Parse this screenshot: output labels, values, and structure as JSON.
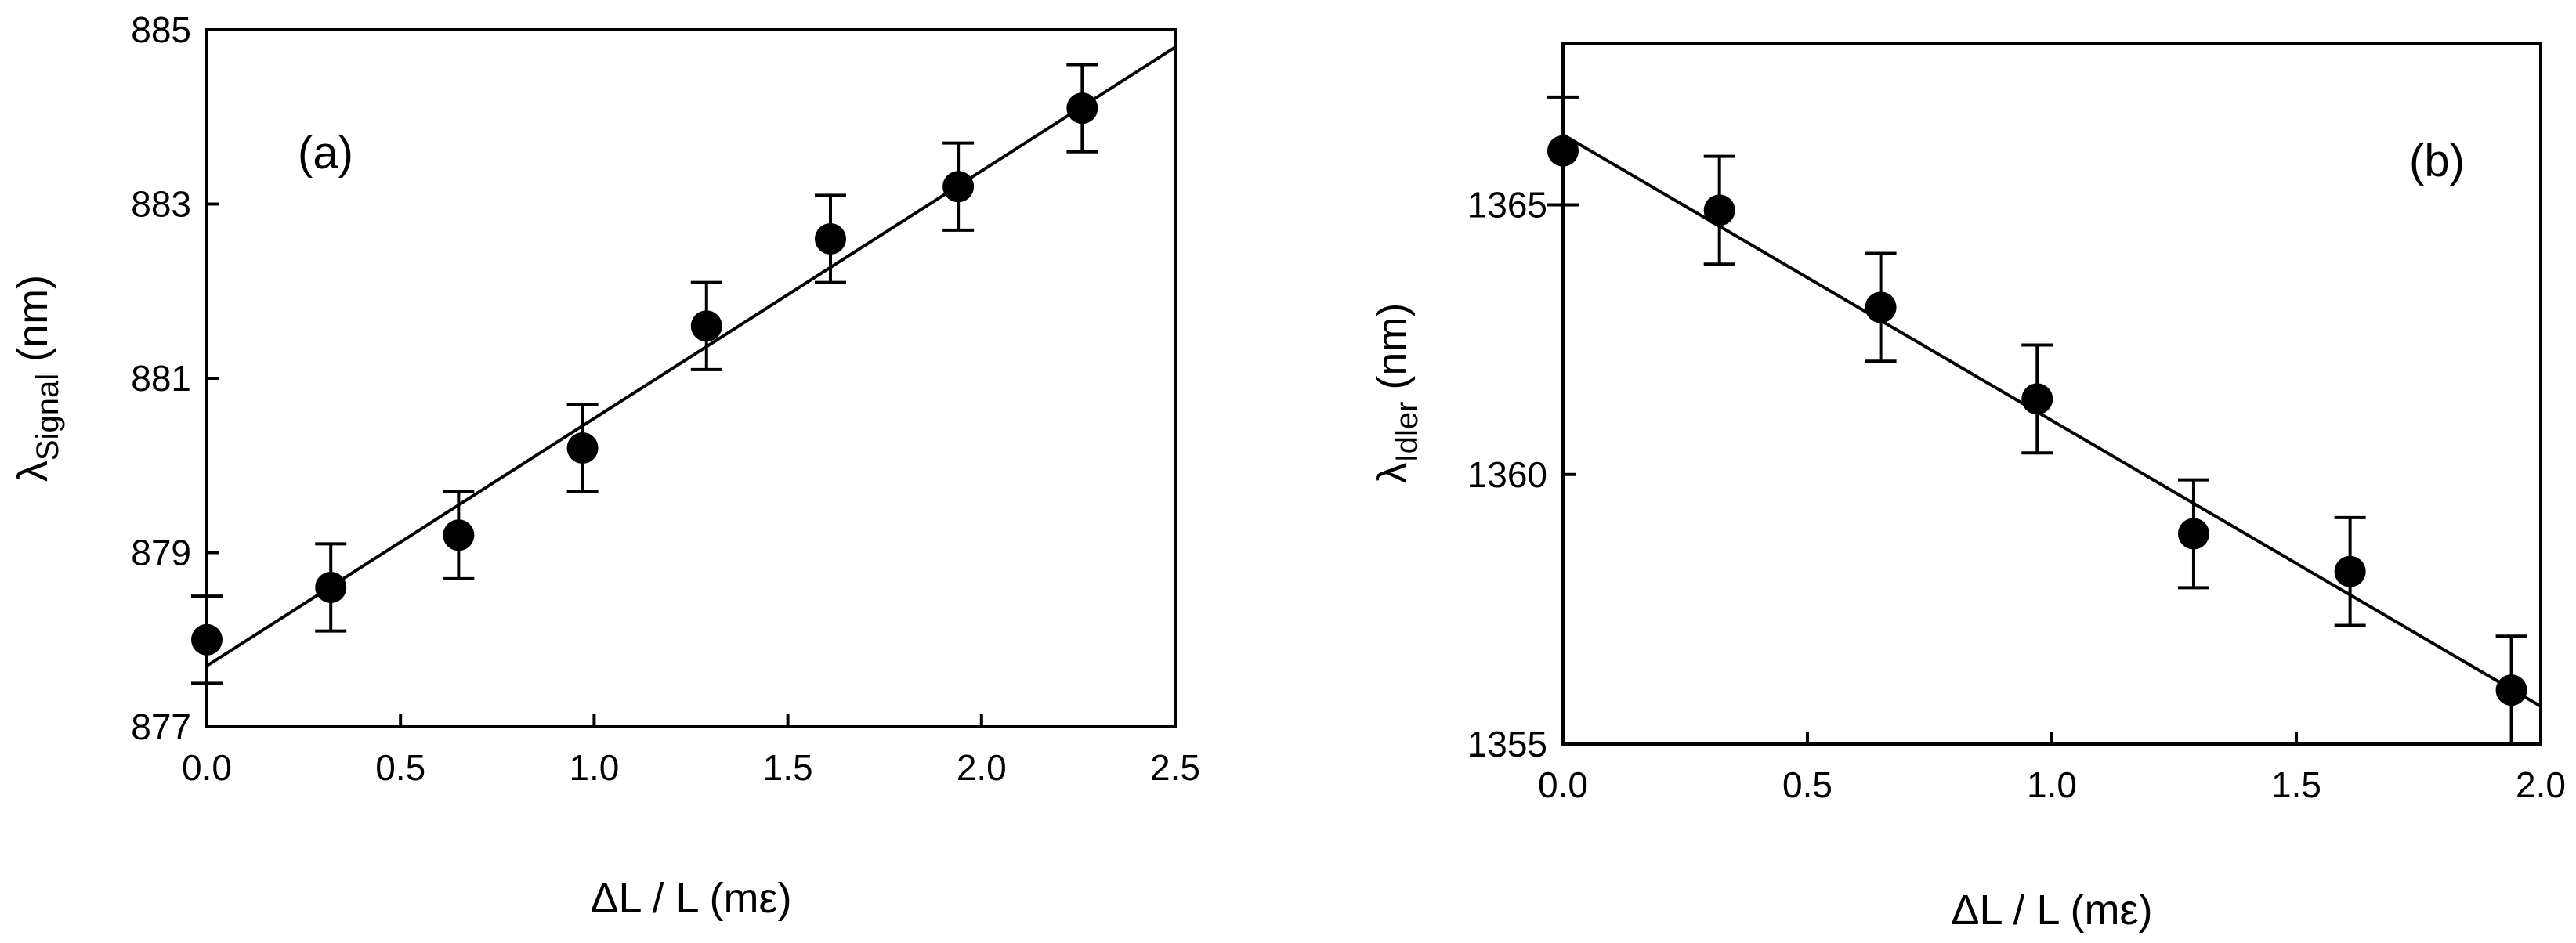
{
  "chart_data": [
    {
      "type": "scatter",
      "panel_label": "(a)",
      "xlabel": "ΔL / L (mε)",
      "ylabel_symbol": "λ",
      "ylabel_subscript": "Signal",
      "ylabel_unit": " (nm)",
      "xlim": [
        0,
        2.5
      ],
      "ylim": [
        877,
        885
      ],
      "xticks": [
        "0.0",
        "0.5",
        "1.0",
        "1.5",
        "2.0",
        "2.5"
      ],
      "yticks": [
        "877",
        "879",
        "881",
        "883",
        "885"
      ],
      "grid": false,
      "series": [
        {
          "x": [
            0.0,
            0.32,
            0.65,
            0.97,
            1.29,
            1.61,
            1.94,
            2.26
          ],
          "y": [
            878.0,
            878.6,
            879.2,
            880.2,
            881.6,
            882.6,
            883.2,
            884.1
          ],
          "error": [
            0.5,
            0.5,
            0.5,
            0.5,
            0.5,
            0.5,
            0.5,
            0.5
          ]
        }
      ],
      "fit_line": {
        "x": [
          0.0,
          2.5
        ],
        "y": [
          877.7,
          884.8
        ]
      }
    },
    {
      "type": "scatter",
      "panel_label": "(b)",
      "xlabel": "ΔL / L (mε)",
      "ylabel_symbol": "λ",
      "ylabel_subscript": "Idler",
      "ylabel_unit": " (nm)",
      "xlim": [
        0,
        2.0
      ],
      "ylim": [
        1355,
        1368
      ],
      "xticks": [
        "0.0",
        "0.5",
        "1.0",
        "1.5",
        "2.0"
      ],
      "yticks": [
        "1355",
        "1360",
        "1365"
      ],
      "grid": false,
      "series": [
        {
          "x": [
            0.0,
            0.32,
            0.65,
            0.97,
            1.29,
            1.61,
            1.94
          ],
          "y": [
            1366.0,
            1364.9,
            1363.1,
            1361.4,
            1358.9,
            1358.2,
            1356.0
          ],
          "error": [
            1.0,
            1.0,
            1.0,
            1.0,
            1.0,
            1.0,
            1.0
          ]
        }
      ],
      "fit_line": {
        "x": [
          0.0,
          2.0
        ],
        "y": [
          1366.3,
          1355.7
        ]
      }
    }
  ]
}
